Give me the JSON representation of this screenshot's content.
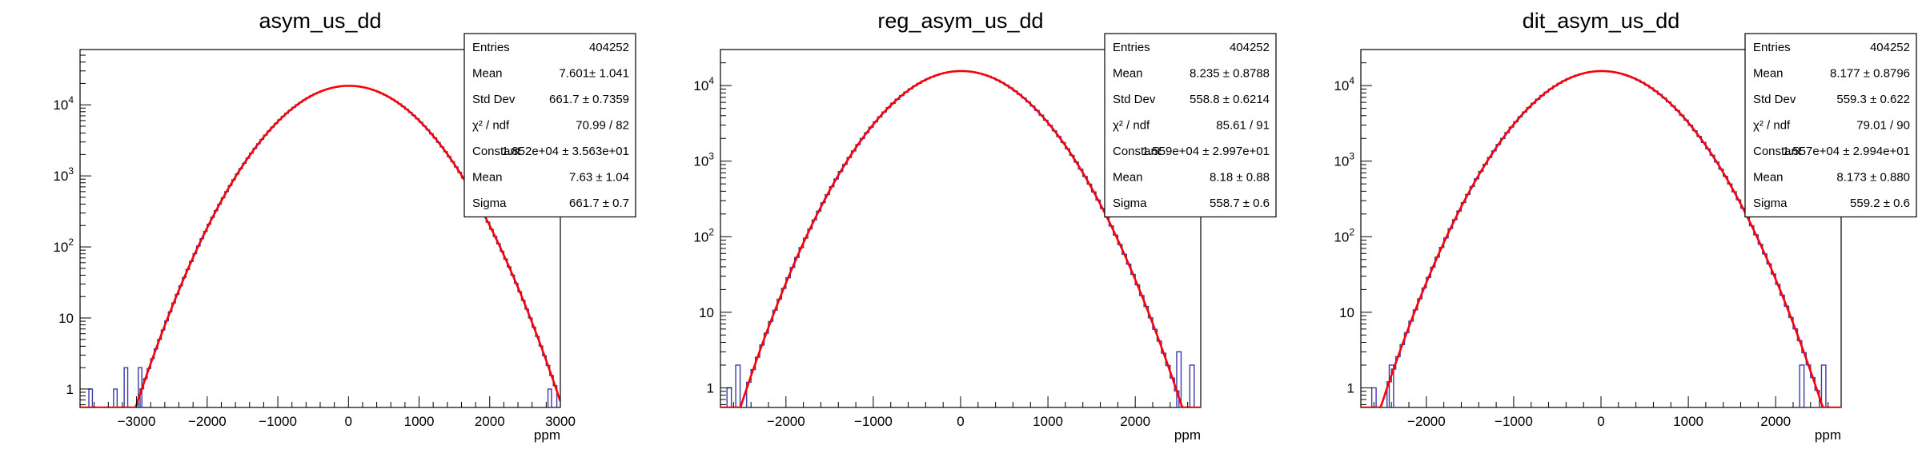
{
  "chart_data": [
    {
      "type": "histogram",
      "title": "asym_us_dd",
      "xlabel": "ppm",
      "xlim": [
        -3800,
        3000
      ],
      "ylim": [
        0.55,
        60000
      ],
      "yscale": "log",
      "x_ticks": [
        {
          "value": -3000,
          "label": "−3000"
        },
        {
          "value": -2000,
          "label": "−2000"
        },
        {
          "value": -1000,
          "label": "−1000"
        },
        {
          "value": 0,
          "label": "0"
        },
        {
          "value": 1000,
          "label": "1000"
        },
        {
          "value": 2000,
          "label": "2000"
        },
        {
          "value": 3000,
          "label": "3000"
        }
      ],
      "y_ticks": [
        {
          "value": 1,
          "base": "1",
          "exp": ""
        },
        {
          "value": 10,
          "base": "10",
          "exp": ""
        },
        {
          "value": 100,
          "base": "10",
          "exp": "2"
        },
        {
          "value": 1000,
          "base": "10",
          "exp": "3"
        },
        {
          "value": 10000,
          "base": "10",
          "exp": "4"
        }
      ],
      "fit": {
        "constant": 18520,
        "mean": 7.63,
        "sigma": 661.7,
        "color": "#ff0000"
      },
      "hist_color": "#3a3aa8",
      "tails": [
        {
          "x": -3650,
          "y": 1
        },
        {
          "x": -3300,
          "y": 1
        },
        {
          "x": -3150,
          "y": 2
        },
        {
          "x": -2950,
          "y": 2
        },
        {
          "x": 2850,
          "y": 1
        },
        {
          "x": 3050,
          "y": 1
        },
        {
          "x": 3250,
          "y": 1
        },
        {
          "x": 3400,
          "y": 1
        }
      ],
      "stats": [
        {
          "label": "Entries",
          "value": "404252"
        },
        {
          "label": "Mean",
          "value": "7.601±  1.041"
        },
        {
          "label": "Std Dev",
          "value": "661.7 ± 0.7359"
        },
        {
          "label": "χ² / ndf",
          "value": "70.99 / 82"
        },
        {
          "label": "Constant",
          "value": "1.852e+04 ± 3.563e+01"
        },
        {
          "label": "Mean",
          "value": "7.63 ± 1.04"
        },
        {
          "label": "Sigma",
          "value": "661.7 ± 0.7"
        }
      ]
    },
    {
      "type": "histogram",
      "title": "reg_asym_us_dd",
      "xlabel": "ppm",
      "xlim": [
        -2750,
        2750
      ],
      "ylim": [
        0.55,
        30000
      ],
      "yscale": "log",
      "x_ticks": [
        {
          "value": -2000,
          "label": "−2000"
        },
        {
          "value": -1000,
          "label": "−1000"
        },
        {
          "value": 0,
          "label": "0"
        },
        {
          "value": 1000,
          "label": "1000"
        },
        {
          "value": 2000,
          "label": "2000"
        }
      ],
      "y_ticks": [
        {
          "value": 1,
          "base": "1",
          "exp": ""
        },
        {
          "value": 10,
          "base": "10",
          "exp": ""
        },
        {
          "value": 100,
          "base": "10",
          "exp": "2"
        },
        {
          "value": 1000,
          "base": "10",
          "exp": "3"
        },
        {
          "value": 10000,
          "base": "10",
          "exp": "4"
        }
      ],
      "fit": {
        "constant": 15590,
        "mean": 8.18,
        "sigma": 558.7,
        "color": "#ff0000"
      },
      "hist_color": "#3a3aa8",
      "tails": [
        {
          "x": -2650,
          "y": 1
        },
        {
          "x": -2550,
          "y": 2
        },
        {
          "x": 2500,
          "y": 3
        },
        {
          "x": 2650,
          "y": 2
        }
      ],
      "stats": [
        {
          "label": "Entries",
          "value": "404252"
        },
        {
          "label": "Mean",
          "value": "8.235 ± 0.8788"
        },
        {
          "label": "Std Dev",
          "value": "558.8 ± 0.6214"
        },
        {
          "label": "χ² / ndf",
          "value": "85.61 / 91"
        },
        {
          "label": "Constant",
          "value": "1.559e+04 ± 2.997e+01"
        },
        {
          "label": "Mean",
          "value": "8.18 ± 0.88"
        },
        {
          "label": "Sigma",
          "value": "558.7 ± 0.6"
        }
      ]
    },
    {
      "type": "histogram",
      "title": "dit_asym_us_dd",
      "xlabel": "ppm",
      "xlim": [
        -2750,
        2750
      ],
      "ylim": [
        0.55,
        30000
      ],
      "yscale": "log",
      "x_ticks": [
        {
          "value": -2000,
          "label": "−2000"
        },
        {
          "value": -1000,
          "label": "−1000"
        },
        {
          "value": 0,
          "label": "0"
        },
        {
          "value": 1000,
          "label": "1000"
        },
        {
          "value": 2000,
          "label": "2000"
        }
      ],
      "y_ticks": [
        {
          "value": 1,
          "base": "1",
          "exp": ""
        },
        {
          "value": 10,
          "base": "10",
          "exp": ""
        },
        {
          "value": 100,
          "base": "10",
          "exp": "2"
        },
        {
          "value": 1000,
          "base": "10",
          "exp": "3"
        },
        {
          "value": 10000,
          "base": "10",
          "exp": "4"
        }
      ],
      "fit": {
        "constant": 15570,
        "mean": 8.173,
        "sigma": 559.2,
        "color": "#ff0000"
      },
      "hist_color": "#3a3aa8",
      "tails": [
        {
          "x": -2600,
          "y": 1
        },
        {
          "x": -2400,
          "y": 2
        },
        {
          "x": 2300,
          "y": 2
        },
        {
          "x": 2550,
          "y": 2
        }
      ],
      "stats": [
        {
          "label": "Entries",
          "value": "404252"
        },
        {
          "label": "Mean",
          "value": "8.177 ± 0.8796"
        },
        {
          "label": "Std Dev",
          "value": "559.3 ± 0.622"
        },
        {
          "label": "χ² / ndf",
          "value": "79.01 / 90"
        },
        {
          "label": "Constant",
          "value": "1.557e+04 ± 2.994e+01"
        },
        {
          "label": "Mean",
          "value": "8.173 ± 0.880"
        },
        {
          "label": "Sigma",
          "value": "559.2 ± 0.6"
        }
      ]
    }
  ]
}
